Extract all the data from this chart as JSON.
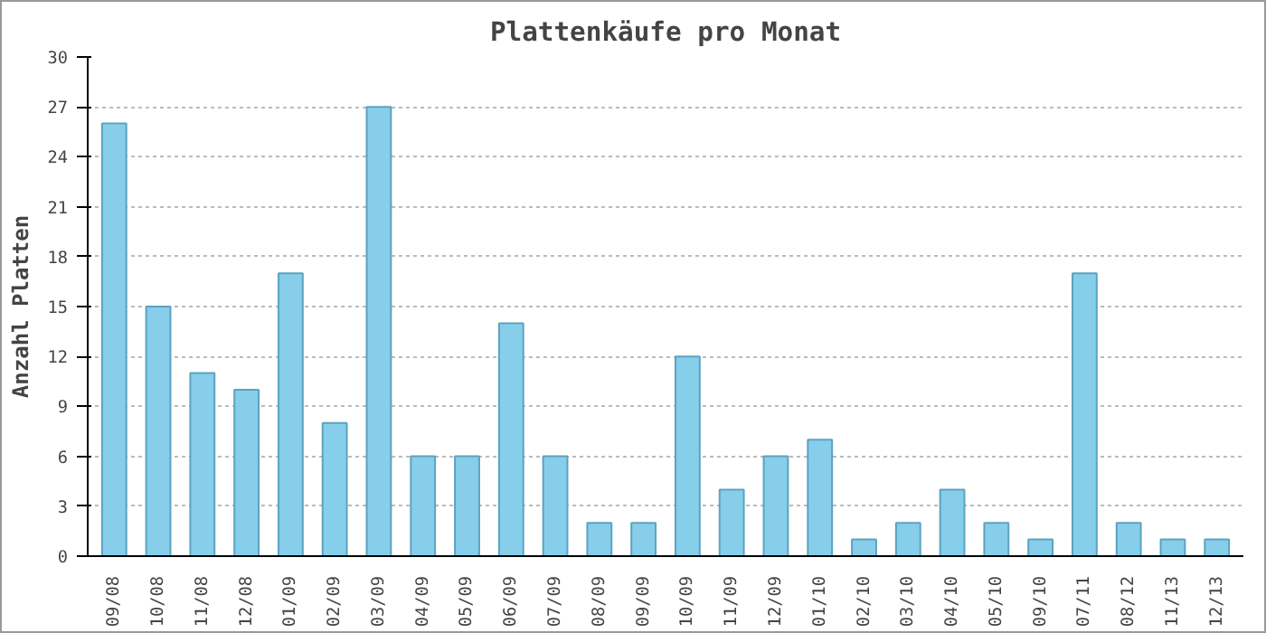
{
  "chart_data": {
    "type": "bar",
    "title": "Plattenkäufe pro Monat",
    "ylabel": "Anzahl Platten",
    "categories": [
      "09/08",
      "10/08",
      "11/08",
      "12/08",
      "01/09",
      "02/09",
      "03/09",
      "04/09",
      "05/09",
      "06/09",
      "07/09",
      "08/09",
      "09/09",
      "10/09",
      "11/09",
      "12/09",
      "01/10",
      "02/10",
      "03/10",
      "04/10",
      "05/10",
      "09/10",
      "07/11",
      "08/12",
      "11/13",
      "12/13"
    ],
    "values": [
      26,
      15,
      11,
      10,
      17,
      8,
      27,
      6,
      6,
      14,
      6,
      2,
      2,
      12,
      4,
      6,
      7,
      1,
      2,
      4,
      2,
      1,
      17,
      2,
      1,
      1
    ],
    "color": "#87ceeb",
    "ylim": [
      0,
      30
    ],
    "yticks": [
      0,
      3,
      6,
      9,
      12,
      15,
      18,
      21,
      24,
      27,
      30
    ],
    "grid": "y"
  }
}
